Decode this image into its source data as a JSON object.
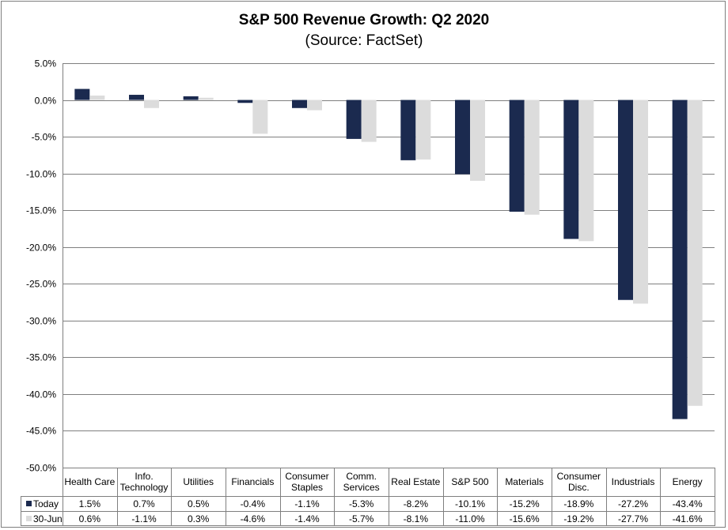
{
  "chart_data": {
    "type": "bar",
    "title": "S&P 500 Revenue Growth: Q2 2020",
    "subtitle": "(Source: FactSet)",
    "categories": [
      [
        "Health Care"
      ],
      [
        "Info.",
        "Technology"
      ],
      [
        "Utilities"
      ],
      [
        "Financials"
      ],
      [
        "Consumer",
        "Staples"
      ],
      [
        "Comm.",
        "Services"
      ],
      [
        "Real Estate"
      ],
      [
        "S&P 500"
      ],
      [
        "Materials"
      ],
      [
        "Consumer",
        "Disc."
      ],
      [
        "Industrials"
      ],
      [
        "Energy"
      ]
    ],
    "series": [
      {
        "name": "Today",
        "color": "#1b2a4f",
        "values": [
          1.5,
          0.7,
          0.5,
          -0.4,
          -1.1,
          -5.3,
          -8.2,
          -10.1,
          -15.2,
          -18.9,
          -27.2,
          -43.4
        ],
        "labels": [
          "1.5%",
          "0.7%",
          "0.5%",
          "-0.4%",
          "-1.1%",
          "-5.3%",
          "-8.2%",
          "-10.1%",
          "-15.2%",
          "-18.9%",
          "-27.2%",
          "-43.4%"
        ]
      },
      {
        "name": "30-Jun",
        "color": "#dcdcdc",
        "values": [
          0.6,
          -1.1,
          0.3,
          -4.6,
          -1.4,
          -5.7,
          -8.1,
          -11.0,
          -15.6,
          -19.2,
          -27.7,
          -41.6
        ],
        "labels": [
          "0.6%",
          "-1.1%",
          "0.3%",
          "-4.6%",
          "-1.4%",
          "-5.7%",
          "-8.1%",
          "-11.0%",
          "-15.6%",
          "-19.2%",
          "-27.7%",
          "-41.6%"
        ]
      }
    ],
    "y_ticks": [
      5,
      0,
      -5,
      -10,
      -15,
      -20,
      -25,
      -30,
      -35,
      -40,
      -45,
      -50
    ],
    "y_tick_labels": [
      "5.0%",
      "0.0%",
      "-5.0%",
      "-10.0%",
      "-15.0%",
      "-20.0%",
      "-25.0%",
      "-30.0%",
      "-35.0%",
      "-40.0%",
      "-45.0%",
      "-50.0%"
    ],
    "ylim": [
      -50,
      5
    ],
    "grid": true,
    "data_table": true
  }
}
